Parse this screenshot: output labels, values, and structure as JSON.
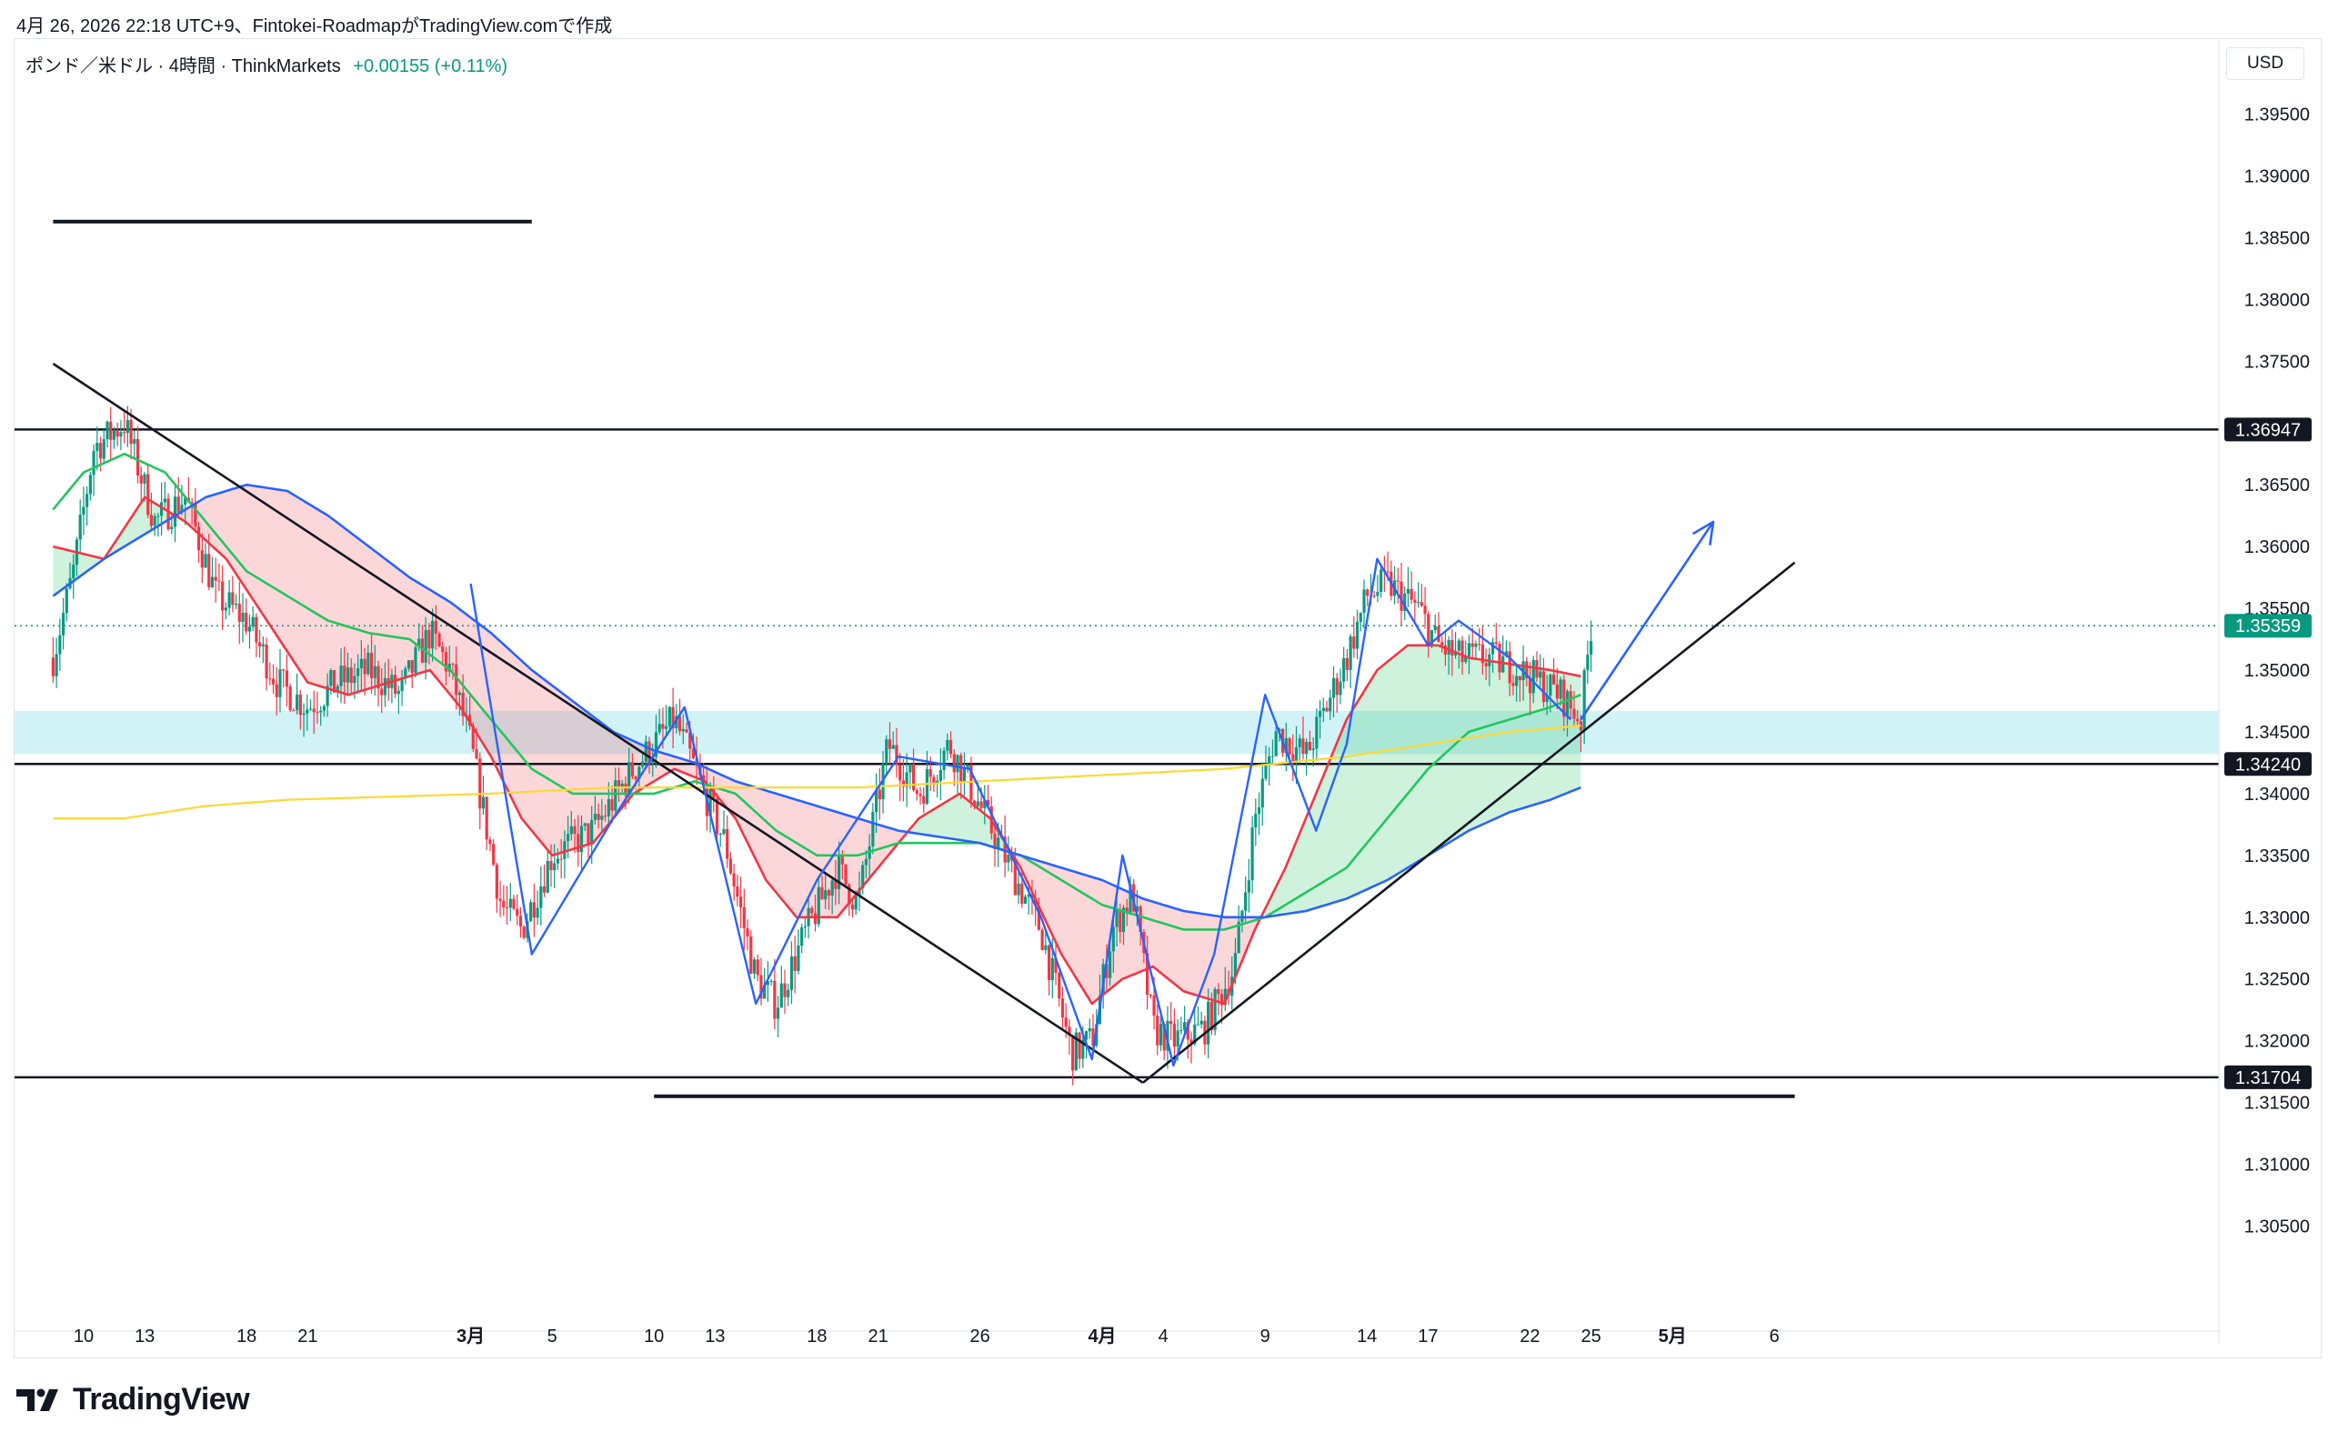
{
  "header": {
    "caption": "4月 26, 2026 22:18 UTC+9、Fintokei-RoadmapがTradingView.comで作成"
  },
  "symbol": {
    "name": "ポンド／米ドル · 4時間 · ThinkMarkets",
    "change": "+0.00155 (+0.11%)"
  },
  "currency": "USD",
  "brand": {
    "name": "TradingView"
  },
  "colors": {
    "up": "#089981",
    "down": "#f23645",
    "ema_fast": "#f23645",
    "ema_mid": "#22c55e",
    "ema_slow": "#2962ff",
    "sma_long": "#fdd835",
    "zone": "#b2ebf2",
    "arrow": "#2962ff"
  },
  "chart_data": {
    "type": "candlestick",
    "symbol": "GBPUSD",
    "timeframe": "4H",
    "ylim": [
      1.3035,
      1.3965
    ],
    "y_ticks": [
      "1.39500",
      "1.39000",
      "1.38500",
      "1.38000",
      "1.37500",
      "1.36500",
      "1.36000",
      "1.35500",
      "1.35000",
      "1.34500",
      "1.34000",
      "1.33500",
      "1.33000",
      "1.32500",
      "1.32000",
      "1.31500",
      "1.31000",
      "1.30500"
    ],
    "price_tags": [
      {
        "label": "1.36947",
        "value": 1.36947,
        "style": "dark"
      },
      {
        "label": "1.35359",
        "value": 1.35359,
        "style": "current"
      },
      {
        "label": "1.34240",
        "value": 1.3424,
        "style": "dark"
      },
      {
        "label": "1.31704",
        "value": 1.31704,
        "style": "dark"
      }
    ],
    "x_ticks": [
      {
        "label": "10",
        "day": 0
      },
      {
        "label": "13",
        "day": 3
      },
      {
        "label": "18",
        "day": 8
      },
      {
        "label": "21",
        "day": 11
      },
      {
        "label": "3月",
        "day": 19
      },
      {
        "label": "5",
        "day": 23
      },
      {
        "label": "10",
        "day": 28
      },
      {
        "label": "13",
        "day": 31
      },
      {
        "label": "18",
        "day": 36
      },
      {
        "label": "21",
        "day": 39
      },
      {
        "label": "26",
        "day": 44
      },
      {
        "label": "4月",
        "day": 50
      },
      {
        "label": "4",
        "day": 53
      },
      {
        "label": "9",
        "day": 58
      },
      {
        "label": "14",
        "day": 63
      },
      {
        "label": "17",
        "day": 66
      },
      {
        "label": "22",
        "day": 71
      },
      {
        "label": "25",
        "day": 74
      },
      {
        "label": "5月",
        "day": 78
      },
      {
        "label": "6",
        "day": 83
      }
    ],
    "x_start": "2026-02-10",
    "price_path": [
      [
        -1.5,
        1.351
      ],
      [
        -0.5,
        1.358
      ],
      [
        0.5,
        1.368
      ],
      [
        2,
        1.37
      ],
      [
        3.5,
        1.362
      ],
      [
        5,
        1.364
      ],
      [
        6.5,
        1.356
      ],
      [
        8,
        1.354
      ],
      [
        9.5,
        1.349
      ],
      [
        11,
        1.347
      ],
      [
        12.5,
        1.349
      ],
      [
        14,
        1.35
      ],
      [
        15.5,
        1.348
      ],
      [
        17,
        1.353
      ],
      [
        18,
        1.35
      ],
      [
        19,
        1.344
      ],
      [
        20.5,
        1.331
      ],
      [
        21.5,
        1.329
      ],
      [
        23,
        1.335
      ],
      [
        25,
        1.337
      ],
      [
        27,
        1.342
      ],
      [
        29,
        1.346
      ],
      [
        30,
        1.342
      ],
      [
        31.5,
        1.336
      ],
      [
        33,
        1.325
      ],
      [
        34,
        1.323
      ],
      [
        35.5,
        1.329
      ],
      [
        37,
        1.334
      ],
      [
        38,
        1.331
      ],
      [
        39.5,
        1.344
      ],
      [
        41,
        1.34
      ],
      [
        42.5,
        1.344
      ],
      [
        44,
        1.339
      ],
      [
        45.5,
        1.334
      ],
      [
        47,
        1.329
      ],
      [
        48.5,
        1.319
      ],
      [
        49.5,
        1.32
      ],
      [
        50.5,
        1.329
      ],
      [
        51.5,
        1.332
      ],
      [
        52.5,
        1.321
      ],
      [
        53.5,
        1.32
      ],
      [
        55,
        1.321
      ],
      [
        56.5,
        1.326
      ],
      [
        57.5,
        1.338
      ],
      [
        58.5,
        1.345
      ],
      [
        60,
        1.343
      ],
      [
        61,
        1.347
      ],
      [
        62,
        1.351
      ],
      [
        63,
        1.356
      ],
      [
        64,
        1.357
      ],
      [
        65.5,
        1.355
      ],
      [
        66.5,
        1.352
      ],
      [
        67.5,
        1.351
      ],
      [
        69,
        1.351
      ],
      [
        70.5,
        1.35
      ],
      [
        71.5,
        1.349
      ],
      [
        72.5,
        1.348
      ],
      [
        73.5,
        1.346
      ],
      [
        74,
        1.3536
      ]
    ],
    "moving_averages": [
      {
        "color": "#f23645",
        "points": [
          [
            -1.5,
            1.36
          ],
          [
            1,
            1.359
          ],
          [
            3,
            1.364
          ],
          [
            5,
            1.362
          ],
          [
            7,
            1.359
          ],
          [
            9,
            1.354
          ],
          [
            11,
            1.349
          ],
          [
            13,
            1.348
          ],
          [
            15,
            1.349
          ],
          [
            17,
            1.35
          ],
          [
            18.5,
            1.347
          ],
          [
            20,
            1.343
          ],
          [
            21.5,
            1.338
          ],
          [
            23,
            1.335
          ],
          [
            25,
            1.336
          ],
          [
            27,
            1.34
          ],
          [
            29,
            1.342
          ],
          [
            30.5,
            1.341
          ],
          [
            32,
            1.338
          ],
          [
            33.5,
            1.333
          ],
          [
            35,
            1.33
          ],
          [
            37,
            1.33
          ],
          [
            39,
            1.334
          ],
          [
            41,
            1.338
          ],
          [
            43,
            1.34
          ],
          [
            44.5,
            1.338
          ],
          [
            46,
            1.334
          ],
          [
            48,
            1.327
          ],
          [
            49.5,
            1.323
          ],
          [
            51,
            1.325
          ],
          [
            52.5,
            1.326
          ],
          [
            54,
            1.324
          ],
          [
            56,
            1.323
          ],
          [
            57.5,
            1.329
          ],
          [
            59,
            1.334
          ],
          [
            60.5,
            1.34
          ],
          [
            62,
            1.346
          ],
          [
            63.5,
            1.35
          ],
          [
            65,
            1.352
          ],
          [
            66.5,
            1.352
          ],
          [
            68,
            1.351
          ],
          [
            70,
            1.3505
          ],
          [
            72,
            1.35
          ],
          [
            73.5,
            1.3495
          ]
        ]
      },
      {
        "color": "#22c55e",
        "points": [
          [
            -1.5,
            1.363
          ],
          [
            0,
            1.366
          ],
          [
            2,
            1.3675
          ],
          [
            4,
            1.366
          ],
          [
            6,
            1.362
          ],
          [
            8,
            1.358
          ],
          [
            10,
            1.356
          ],
          [
            12,
            1.354
          ],
          [
            14,
            1.353
          ],
          [
            16,
            1.3525
          ],
          [
            18,
            1.35
          ],
          [
            20,
            1.346
          ],
          [
            22,
            1.342
          ],
          [
            24,
            1.34
          ],
          [
            26,
            1.34
          ],
          [
            28,
            1.34
          ],
          [
            30,
            1.341
          ],
          [
            32,
            1.34
          ],
          [
            34,
            1.337
          ],
          [
            36,
            1.335
          ],
          [
            38,
            1.335
          ],
          [
            40,
            1.336
          ],
          [
            42,
            1.336
          ],
          [
            44,
            1.336
          ],
          [
            46,
            1.335
          ],
          [
            48,
            1.333
          ],
          [
            50,
            1.331
          ],
          [
            52,
            1.33
          ],
          [
            54,
            1.329
          ],
          [
            56,
            1.329
          ],
          [
            58,
            1.33
          ],
          [
            60,
            1.332
          ],
          [
            62,
            1.334
          ],
          [
            64,
            1.338
          ],
          [
            66,
            1.342
          ],
          [
            68,
            1.345
          ],
          [
            70,
            1.346
          ],
          [
            72,
            1.347
          ],
          [
            73.5,
            1.348
          ]
        ]
      },
      {
        "color": "#2962ff",
        "points": [
          [
            -1.5,
            1.356
          ],
          [
            1,
            1.359
          ],
          [
            4,
            1.362
          ],
          [
            6,
            1.364
          ],
          [
            8,
            1.365
          ],
          [
            10,
            1.3645
          ],
          [
            12,
            1.3625
          ],
          [
            14,
            1.36
          ],
          [
            16,
            1.3575
          ],
          [
            18,
            1.3555
          ],
          [
            20,
            1.353
          ],
          [
            22,
            1.35
          ],
          [
            24,
            1.3475
          ],
          [
            26,
            1.345
          ],
          [
            28,
            1.3435
          ],
          [
            30,
            1.3425
          ],
          [
            32,
            1.341
          ],
          [
            34,
            1.34
          ],
          [
            36,
            1.339
          ],
          [
            38,
            1.338
          ],
          [
            40,
            1.337
          ],
          [
            42,
            1.3365
          ],
          [
            44,
            1.336
          ],
          [
            46,
            1.335
          ],
          [
            48,
            1.334
          ],
          [
            50,
            1.333
          ],
          [
            52,
            1.3315
          ],
          [
            54,
            1.3305
          ],
          [
            56,
            1.33
          ],
          [
            58,
            1.33
          ],
          [
            60,
            1.3305
          ],
          [
            62,
            1.3315
          ],
          [
            64,
            1.333
          ],
          [
            66,
            1.335
          ],
          [
            68,
            1.337
          ],
          [
            70,
            1.3385
          ],
          [
            72,
            1.3395
          ],
          [
            73.5,
            1.3405
          ]
        ]
      },
      {
        "color": "#fdd835",
        "points": [
          [
            -1.5,
            1.338
          ],
          [
            2,
            1.338
          ],
          [
            6,
            1.339
          ],
          [
            10,
            1.3395
          ],
          [
            14,
            1.3397
          ],
          [
            20,
            1.34
          ],
          [
            26,
            1.3405
          ],
          [
            32,
            1.3405
          ],
          [
            38,
            1.3405
          ],
          [
            44,
            1.341
          ],
          [
            50,
            1.3415
          ],
          [
            56,
            1.342
          ],
          [
            62,
            1.343
          ],
          [
            66,
            1.344
          ],
          [
            70,
            1.345
          ],
          [
            73.5,
            1.3455
          ]
        ]
      }
    ],
    "horizontal_lines": [
      1.36947,
      1.3424,
      1.31704
    ],
    "support_zone": [
      1.3432,
      1.3467
    ],
    "trend_lines": [
      {
        "from": [
          -1.5,
          1.3748
        ],
        "to": [
          52,
          1.3166
        ]
      },
      {
        "from": [
          52,
          1.3166
        ],
        "to": [
          84,
          1.3587
        ]
      }
    ],
    "short_lines": [
      {
        "from": [
          -1.5,
          1.3863
        ],
        "to": [
          22,
          1.3863
        ]
      },
      {
        "from": [
          28,
          1.3155
        ],
        "to": [
          84,
          1.3155
        ]
      }
    ],
    "zigzag": [
      [
        19,
        1.357
      ],
      [
        22,
        1.327
      ],
      [
        26,
        1.338
      ],
      [
        29.5,
        1.347
      ],
      [
        33,
        1.323
      ],
      [
        36,
        1.333
      ],
      [
        40,
        1.343
      ],
      [
        43.5,
        1.342
      ],
      [
        47,
        1.33
      ],
      [
        49.5,
        1.3185
      ],
      [
        51,
        1.335
      ],
      [
        53.5,
        1.318
      ],
      [
        55.5,
        1.327
      ],
      [
        58,
        1.348
      ],
      [
        60.5,
        1.337
      ],
      [
        62,
        1.344
      ],
      [
        63.5,
        1.359
      ],
      [
        66,
        1.352
      ],
      [
        67.5,
        1.354
      ],
      [
        70,
        1.351
      ],
      [
        73,
        1.346
      ]
    ],
    "projection_arrow": {
      "from": [
        73.5,
        1.346
      ],
      "to": [
        80,
        1.362
      ]
    }
  }
}
